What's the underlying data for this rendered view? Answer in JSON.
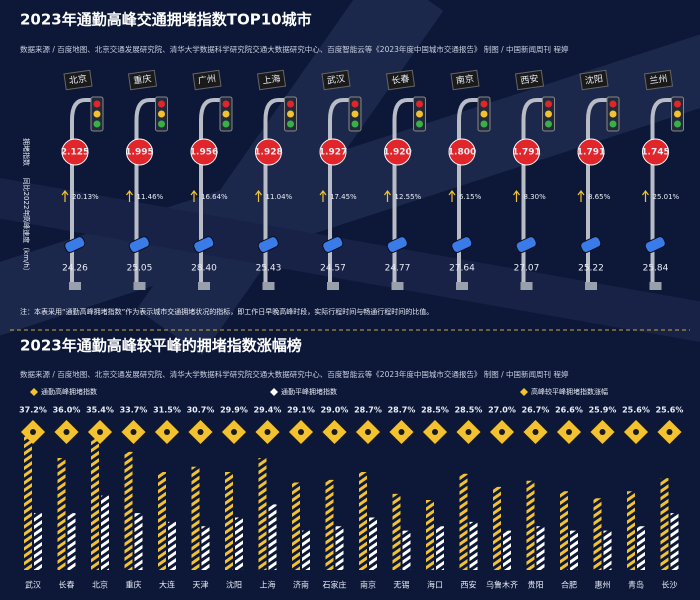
{
  "chart_data": [
    {
      "type": "pictogram",
      "title": "2023年通勤高峰交通拥堵指数TOP10城市",
      "source": "数据来源 / 百度地图、北京交通发展研究院、清华大学数据科学研究院交通大数据研究中心、百度智能云等《2023年度中国城市交通报告》    制图 / 中国新闻周刊   程婷",
      "note": "注：本表采用“通勤高峰拥堵指数”作为表示城市交通拥堵状况的指标，即工作日早晚高峰时段，实际行程时间与畅通行程时间的比值。",
      "categories": [
        "北京",
        "重庆",
        "广州",
        "上海",
        "武汉",
        "长春",
        "南京",
        "西安",
        "沈阳",
        "兰州"
      ],
      "series": [
        {
          "name": "拥堵指数",
          "color": "#e0262b",
          "values": [
            2.125,
            1.995,
            1.956,
            1.928,
            1.927,
            1.92,
            1.8,
            1.791,
            1.791,
            1.745
          ],
          "value_labels": [
            "2.125",
            "1.995",
            "1.956",
            "1.928",
            "1.927",
            "1.920",
            "1.800",
            "1.791",
            "1.791",
            "1.745"
          ]
        },
        {
          "name": "同比2022年",
          "color": "#f2c230",
          "values": [
            20.13,
            11.46,
            16.64,
            11.04,
            17.45,
            12.55,
            6.15,
            8.3,
            8.65,
            25.01
          ],
          "value_labels": [
            "20.13%",
            "11.46%",
            "16.64%",
            "11.04%",
            "17.45%",
            "12.55%",
            "6.15%",
            "8.30%",
            "8.65%",
            "25.01%"
          ]
        },
        {
          "name": "高峰速度（km/h）",
          "color": "#3a7be8",
          "values": [
            24.26,
            25.05,
            28.4,
            25.43,
            24.57,
            24.77,
            27.64,
            27.07,
            25.22,
            25.84
          ],
          "value_labels": [
            "24.26",
            "25.05",
            "28.40",
            "25.43",
            "24.57",
            "24.77",
            "27.64",
            "27.07",
            "25.22",
            "25.84"
          ]
        }
      ]
    },
    {
      "type": "bar",
      "title": "2023年通勤高峰较平峰的拥堵指数涨幅榜",
      "source": "数据来源 / 百度地图、北京交通发展研究院、清华大学数据科学研究院交通大数据研究中心、百度智能云等《2023年度中国城市交通报告》    制图 / 中国新闻周刊   程婷",
      "categories": [
        "武汉",
        "长春",
        "北京",
        "重庆",
        "大连",
        "天津",
        "沈阳",
        "上海",
        "济南",
        "石家庄",
        "南京",
        "无锡",
        "海口",
        "西安",
        "乌鲁木齐",
        "贵阳",
        "合肥",
        "惠州",
        "青岛",
        "长沙"
      ],
      "ylim": [
        0,
        160
      ],
      "series": [
        {
          "name": "通勤高峰拥堵指数",
          "color": "#f2c230",
          "values": [
            153,
            128,
            150,
            135,
            112,
            118,
            112,
            128,
            100,
            103,
            112,
            87,
            80,
            110,
            95,
            102,
            90,
            82,
            90,
            105
          ]
        },
        {
          "name": "通勤平峰拥堵指数",
          "color": "#ffffff",
          "values": [
            65,
            65,
            85,
            65,
            55,
            50,
            60,
            75,
            45,
            50,
            60,
            45,
            50,
            55,
            45,
            50,
            45,
            45,
            50,
            65
          ]
        }
      ],
      "increase": {
        "name": "高峰较平峰拥堵指数涨幅",
        "color": "#f2c230",
        "values": [
          37.2,
          36.0,
          35.4,
          33.7,
          31.5,
          30.7,
          29.9,
          29.4,
          29.1,
          29.0,
          28.7,
          28.7,
          28.5,
          28.5,
          27.0,
          26.7,
          26.6,
          25.9,
          25.6,
          25.6
        ],
        "value_labels": [
          "37.2%",
          "36.0%",
          "35.4%",
          "33.7%",
          "31.5%",
          "30.7%",
          "29.9%",
          "29.4%",
          "29.1%",
          "29.0%",
          "28.7%",
          "28.7%",
          "28.5%",
          "28.5%",
          "27.0%",
          "26.7%",
          "26.6%",
          "25.9%",
          "25.6%",
          "25.6%"
        ]
      }
    }
  ]
}
